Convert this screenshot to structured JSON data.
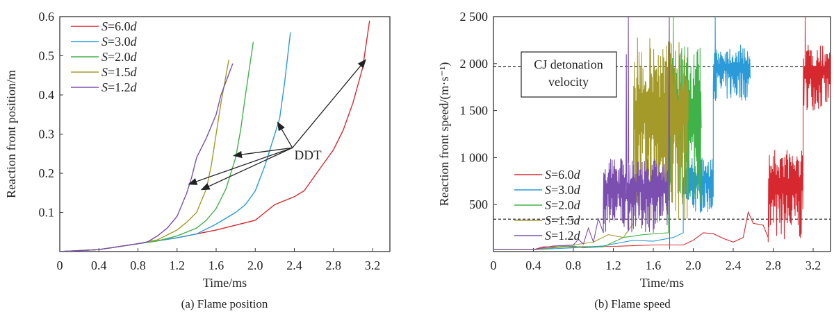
{
  "chart_data": [
    {
      "type": "line",
      "title": "(a) Flame position",
      "xlabel": "Time/ms",
      "ylabel": "Reaction front position/m",
      "xlim": [
        0,
        3.4
      ],
      "ylim": [
        0,
        0.6
      ],
      "xticks": [
        0,
        0.4,
        0.8,
        1.2,
        1.6,
        2.0,
        2.4,
        2.8,
        3.2
      ],
      "xtick_labels": [
        "0",
        "0.4",
        "0.8",
        "1.2",
        "1.6",
        "2.0",
        "2.4",
        "2.8",
        "3.2"
      ],
      "yticks": [
        0.1,
        0.2,
        0.3,
        0.4,
        0.5,
        0.6
      ],
      "ytick_labels": [
        "0.1",
        "0.2",
        "0.3",
        "0.4",
        "0.5",
        "0.6"
      ],
      "grid": false,
      "legend_position": "top-left",
      "series": [
        {
          "name": "S=6.0d",
          "italic_prefix": "S",
          "rest": "=6.0",
          "italic_suffix": "d",
          "color": "#d7282f",
          "x": [
            0,
            0.4,
            0.8,
            1.2,
            1.6,
            2.0,
            2.1,
            2.2,
            2.4,
            2.5,
            2.6,
            2.7,
            2.8,
            2.9,
            3.0,
            3.1,
            3.17
          ],
          "y": [
            0,
            0.005,
            0.02,
            0.035,
            0.055,
            0.08,
            0.1,
            0.12,
            0.14,
            0.155,
            0.19,
            0.225,
            0.26,
            0.31,
            0.38,
            0.47,
            0.59
          ]
        },
        {
          "name": "S=3.0d",
          "italic_prefix": "S",
          "rest": "=3.0",
          "italic_suffix": "d",
          "color": "#2a9ad8",
          "x": [
            0,
            0.4,
            0.8,
            1.2,
            1.4,
            1.6,
            1.8,
            1.9,
            2.0,
            2.1,
            2.2,
            2.25,
            2.3,
            2.36
          ],
          "y": [
            0,
            0.005,
            0.02,
            0.035,
            0.045,
            0.07,
            0.1,
            0.12,
            0.155,
            0.22,
            0.3,
            0.34,
            0.43,
            0.56
          ]
        },
        {
          "name": "S=2.0d",
          "italic_prefix": "S",
          "rest": "=2.0",
          "italic_suffix": "d",
          "color": "#3fb24a",
          "x": [
            0,
            0.4,
            0.8,
            1.0,
            1.2,
            1.4,
            1.5,
            1.6,
            1.7,
            1.8,
            1.85,
            1.9,
            1.98
          ],
          "y": [
            0,
            0.005,
            0.02,
            0.027,
            0.04,
            0.06,
            0.08,
            0.11,
            0.16,
            0.24,
            0.31,
            0.4,
            0.535
          ]
        },
        {
          "name": "S=1.5d",
          "italic_prefix": "S",
          "rest": "=1.5",
          "italic_suffix": "d",
          "color": "#a39a2a",
          "x": [
            0,
            0.4,
            0.8,
            1.0,
            1.2,
            1.3,
            1.4,
            1.5,
            1.55,
            1.6,
            1.65,
            1.73
          ],
          "y": [
            0,
            0.005,
            0.02,
            0.03,
            0.055,
            0.075,
            0.1,
            0.16,
            0.22,
            0.3,
            0.38,
            0.49
          ]
        },
        {
          "name": "S=1.2d",
          "italic_prefix": "S",
          "rest": "=1.2",
          "italic_suffix": "d",
          "color": "#7b4fb0",
          "x": [
            0,
            0.4,
            0.8,
            0.9,
            1.0,
            1.1,
            1.2,
            1.3,
            1.35,
            1.4,
            1.5,
            1.6,
            1.65,
            1.77
          ],
          "y": [
            0,
            0.005,
            0.02,
            0.025,
            0.04,
            0.06,
            0.09,
            0.15,
            0.19,
            0.24,
            0.29,
            0.35,
            0.4,
            0.48
          ]
        }
      ],
      "annotations": [
        {
          "text": "DDT",
          "at": [
            2.4,
            0.25
          ],
          "arrow_from": [
            2.38,
            0.265
          ],
          "arrow_targets": [
            [
              3.13,
              0.49
            ],
            [
              2.23,
              0.33
            ],
            [
              1.78,
              0.245
            ],
            [
              1.32,
              0.172
            ],
            [
              1.45,
              0.158
            ]
          ]
        }
      ]
    },
    {
      "type": "line",
      "title": "(b) Flame speed",
      "xlabel": "Time/ms",
      "ylabel": "Reaction front speed/(m·s⁻¹)",
      "xlim": [
        0,
        3.38
      ],
      "ylim": [
        0,
        2500
      ],
      "xticks": [
        0,
        0.4,
        0.8,
        1.2,
        1.6,
        2.0,
        2.4,
        2.8,
        3.2
      ],
      "xtick_labels": [
        "0",
        "0.4",
        "0.8",
        "1.2",
        "1.6",
        "2.0",
        "2.4",
        "2.8",
        "3.2"
      ],
      "yticks": [
        500,
        1000,
        1500,
        2000,
        2500
      ],
      "ytick_labels": [
        "500",
        "1 000",
        "1 500",
        "2 000",
        "2 500"
      ],
      "grid": false,
      "legend_position": "center-left",
      "reference_lines": [
        {
          "y": 1970,
          "style": "dashed",
          "label_line1": "CJ detonation",
          "label_line2": "velocity"
        },
        {
          "y": 345,
          "style": "dashed"
        }
      ],
      "series": [
        {
          "name": "S=6.0d",
          "italic_prefix": "S",
          "rest": "=6.0",
          "italic_suffix": "d",
          "color": "#d7282f",
          "x": [
            0,
            0.4,
            0.5,
            0.8,
            1.2,
            1.6,
            1.9,
            2.0,
            2.1,
            2.2,
            2.3,
            2.4,
            2.5,
            2.55,
            2.6,
            2.7,
            2.75
          ],
          "y": [
            20,
            20,
            50,
            50,
            55,
            70,
            70,
            120,
            200,
            190,
            140,
            100,
            150,
            420,
            300,
            280,
            150
          ],
          "oscillations": [
            [
              2.75,
              3.1,
              100,
              1100
            ],
            [
              3.1,
              3.38,
              1500,
              2200
            ]
          ],
          "spikes": [
            [
              3.12,
              2500
            ]
          ]
        },
        {
          "name": "S=3.0d",
          "italic_prefix": "S",
          "rest": "=3.0",
          "italic_suffix": "d",
          "color": "#2a9ad8",
          "x": [
            0,
            0.4,
            0.8,
            1.1,
            1.4,
            1.6,
            1.8,
            1.9
          ],
          "y": [
            20,
            20,
            40,
            60,
            120,
            110,
            150,
            200
          ],
          "oscillations": [
            [
              1.9,
              2.2,
              400,
              1000
            ],
            [
              2.2,
              2.57,
              1600,
              2200
            ]
          ],
          "spikes": [
            [
              2.22,
              2500
            ]
          ]
        },
        {
          "name": "S=2.0d",
          "italic_prefix": "S",
          "rest": "=2.0",
          "italic_suffix": "d",
          "color": "#3fb24a",
          "x": [
            0,
            0.4,
            0.8,
            0.9,
            1.1,
            1.3,
            1.5,
            1.75
          ],
          "y": [
            20,
            20,
            60,
            40,
            50,
            150,
            180,
            200
          ],
          "oscillations": [
            [
              1.75,
              2.08,
              500,
              2200
            ]
          ],
          "spikes": [
            [
              1.8,
              2500
            ]
          ]
        },
        {
          "name": "S=1.5d",
          "italic_prefix": "S",
          "rest": "=1.5",
          "italic_suffix": "d",
          "color": "#a39a2a",
          "x": [
            0,
            0.4,
            0.8,
            1.0,
            1.15,
            1.3,
            1.4
          ],
          "y": [
            20,
            20,
            70,
            100,
            180,
            150,
            300
          ],
          "oscillations": [
            [
              1.4,
              1.95,
              300,
              2300
            ]
          ],
          "spikes": []
        },
        {
          "name": "S=1.2d",
          "italic_prefix": "S",
          "rest": "=1.2",
          "italic_suffix": "d",
          "color": "#7b4fb0",
          "x": [
            0,
            0.4,
            0.6,
            0.8,
            0.85,
            0.9,
            0.95,
            1.0,
            1.05,
            1.1
          ],
          "y": [
            20,
            20,
            60,
            70,
            130,
            80,
            250,
            100,
            350,
            200
          ],
          "oscillations": [
            [
              1.1,
              1.75,
              200,
              1000
            ]
          ],
          "spikes": [
            [
              1.33,
              2100
            ],
            [
              1.35,
              2500
            ],
            [
              1.76,
              2500
            ]
          ]
        }
      ]
    }
  ]
}
